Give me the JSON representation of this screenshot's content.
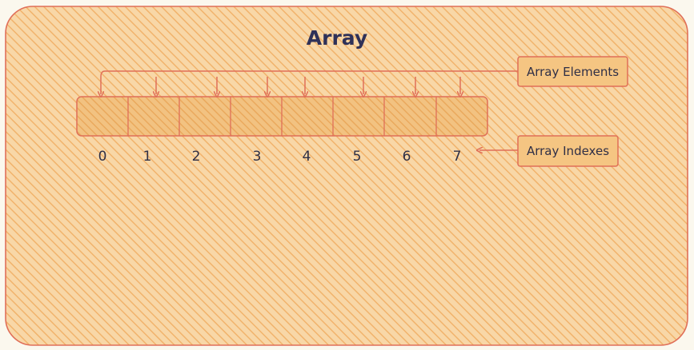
{
  "diagram": {
    "title": "Array",
    "labels": {
      "elements": "Array Elements",
      "indexes": "Array Indexes"
    },
    "indexes": [
      "0",
      "1",
      "2",
      "3",
      "4",
      "5",
      "6",
      "7"
    ]
  },
  "colors": {
    "background": "#fbf8ee",
    "panel_fill": "#f7cf95",
    "panel_hatch": "#f3b46b",
    "stroke": "#e06f58",
    "cell_fill": "#efb36d",
    "text": "#2f2f46"
  }
}
